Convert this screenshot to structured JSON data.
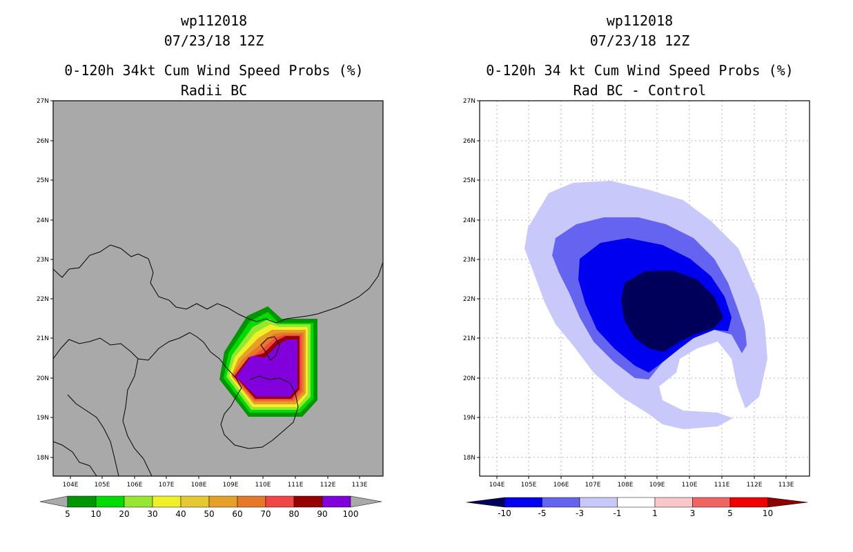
{
  "left_panel": {
    "title_storm": "wp112018",
    "title_date": "07/23/18 12Z",
    "title_product": "0-120h 34kt Cum Wind Speed Probs (%)",
    "title_sub": "Radii BC",
    "lat_labels": [
      "27N",
      "26N",
      "25N",
      "24N",
      "23N",
      "22N",
      "21N",
      "20N",
      "19N",
      "18N"
    ],
    "lon_labels": [
      "104E",
      "105E",
      "106E",
      "107E",
      "108E",
      "109E",
      "110E",
      "111E",
      "112E",
      "113E"
    ],
    "colorbar_labels": [
      "5",
      "10",
      "20",
      "30",
      "40",
      "50",
      "60",
      "70",
      "80",
      "90",
      "100"
    ],
    "colorbar_colors": [
      "#009600",
      "#00dc00",
      "#96e632",
      "#f0f028",
      "#e6c832",
      "#e6a028",
      "#e67828",
      "#f04646",
      "#960000",
      "#8200dc"
    ],
    "background_color": "#a9a9a9"
  },
  "right_panel": {
    "title_storm": "wp112018",
    "title_date": "07/23/18 12Z",
    "title_product": "0-120h 34 kt Cum Wind Speed Probs (%)",
    "title_sub": "Rad BC - Control",
    "lat_labels": [
      "27N",
      "26N",
      "25N",
      "24N",
      "23N",
      "22N",
      "21N",
      "20N",
      "19N",
      "18N"
    ],
    "lon_labels": [
      "104E",
      "105E",
      "106E",
      "107E",
      "108E",
      "109E",
      "110E",
      "111E",
      "112E",
      "113E"
    ],
    "colorbar_labels": [
      "-10",
      "-5",
      "-3",
      "-1",
      "1",
      "3",
      "5",
      "10"
    ],
    "colorbar_colors": [
      "#00005a",
      "#0000f0",
      "#6464f0",
      "#c8c8fa",
      "#ffffff",
      "#fac8c8",
      "#f06464",
      "#f00000",
      "#8c0000"
    ]
  }
}
